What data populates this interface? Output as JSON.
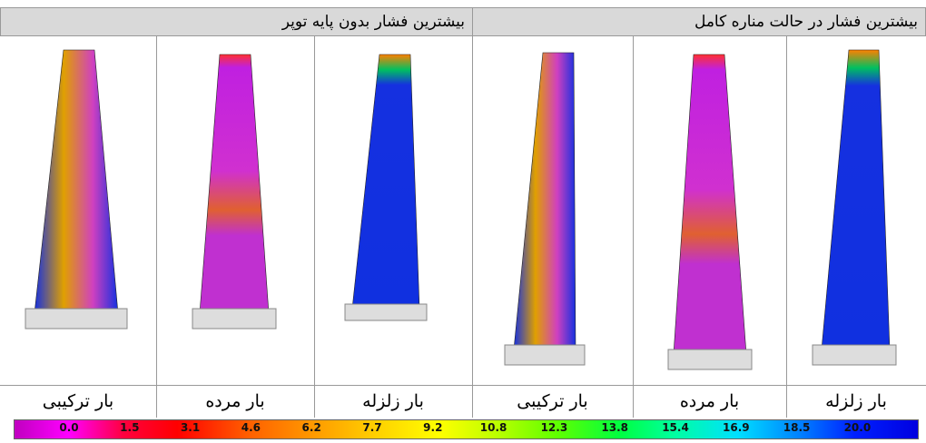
{
  "headers": [
    "بیشترین فشار بدون پایه توپر",
    "بیشترین فشار در حالت مناره کامل"
  ],
  "columns": [
    "بار ترکیبی",
    "بار مرده",
    "بار زلزله",
    "بار ترکیبی",
    "بار مرده",
    "بار زلزله"
  ],
  "colorbar": {
    "labels": [
      "0.0",
      "1.5",
      "3.1",
      "4.6",
      "6.2",
      "7.7",
      "9.2",
      "10.8",
      "12.3",
      "13.8",
      "15.4",
      "16.9",
      "18.5",
      "20.0"
    ]
  }
}
